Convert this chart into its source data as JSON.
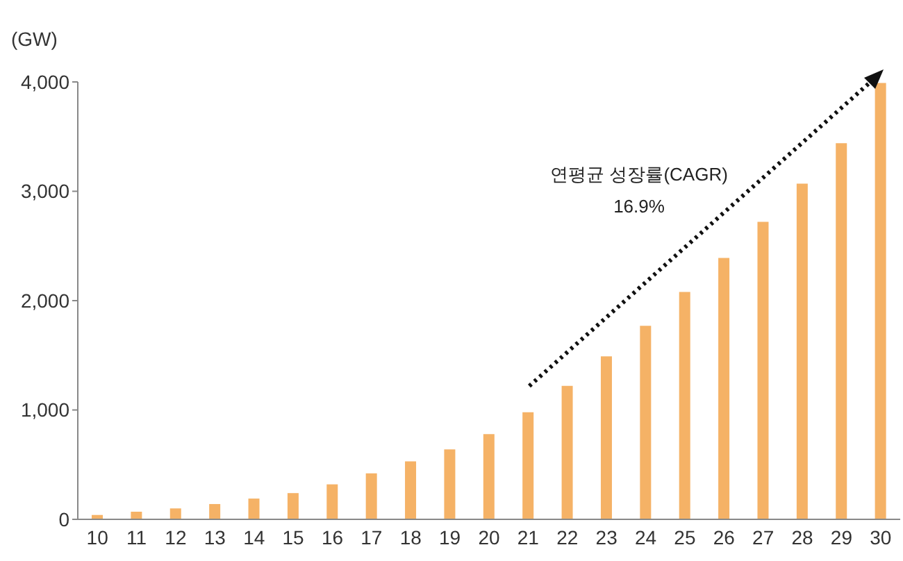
{
  "chart_data": {
    "type": "bar",
    "ylabel": "(GW)",
    "categories": [
      "10",
      "11",
      "12",
      "13",
      "14",
      "15",
      "16",
      "17",
      "18",
      "19",
      "20",
      "21",
      "22",
      "23",
      "24",
      "25",
      "26",
      "27",
      "28",
      "29",
      "30"
    ],
    "values": [
      40,
      70,
      100,
      140,
      190,
      240,
      320,
      420,
      530,
      640,
      780,
      980,
      1220,
      1490,
      1770,
      2080,
      2390,
      2720,
      3070,
      3440,
      3990
    ],
    "color": "#f5b266",
    "ylim": [
      0,
      4000
    ],
    "yticks": [
      0,
      {
        "value": 1000,
        "label": "1,000"
      },
      {
        "value": 2000,
        "label": "2,000"
      },
      {
        "value": 3000,
        "label": "3,000"
      },
      {
        "value": 4000,
        "label": "4,000"
      }
    ],
    "grid": false,
    "legend": false,
    "annotations": [
      "연평균 성장률(CAGR)",
      "16.9%"
    ]
  }
}
